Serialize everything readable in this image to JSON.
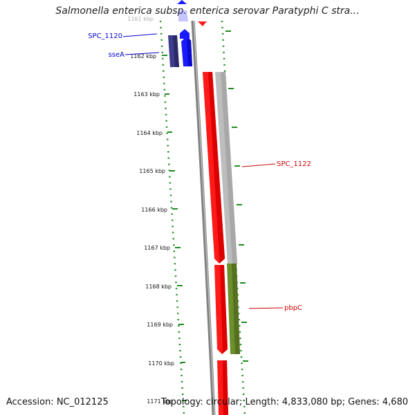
{
  "title": "Salmonella enterica subsp. enterica serovar Paratyphi C stra...",
  "footer": {
    "accession": "Accession: NC_012125",
    "topology": "Topology: circular; Length: 4,833,080 bp; Genes: 4,680"
  },
  "ticks": [
    {
      "label": "1161 kbp",
      "faded": true
    },
    {
      "label": "1162 kbp"
    },
    {
      "label": "1163 kbp"
    },
    {
      "label": "1164 kbp"
    },
    {
      "label": "1165 kbp"
    },
    {
      "label": "1166 kbp"
    },
    {
      "label": "1167 kbp"
    },
    {
      "label": "1168 kbp"
    },
    {
      "label": "1169 kbp"
    },
    {
      "label": "1170 kbp"
    },
    {
      "label": "1171 kbp"
    }
  ],
  "gene_labels": [
    {
      "name": "SPC_1120",
      "color": "#0000cc"
    },
    {
      "name": "sseA",
      "color": "#0000cc"
    },
    {
      "name": "SPC_1122",
      "color": "#cc0000"
    },
    {
      "name": "pbpC",
      "color": "#cc0000"
    }
  ],
  "colors": {
    "forward_gene": "#1a1aff",
    "reverse_gene": "#ff1a1a",
    "dark_gene": "#3d3d8c",
    "gray_gene": "#bdbdbd",
    "olive_gene": "#6b8f2a",
    "backbone": "#808080",
    "ruler": "#1f8a1f"
  }
}
